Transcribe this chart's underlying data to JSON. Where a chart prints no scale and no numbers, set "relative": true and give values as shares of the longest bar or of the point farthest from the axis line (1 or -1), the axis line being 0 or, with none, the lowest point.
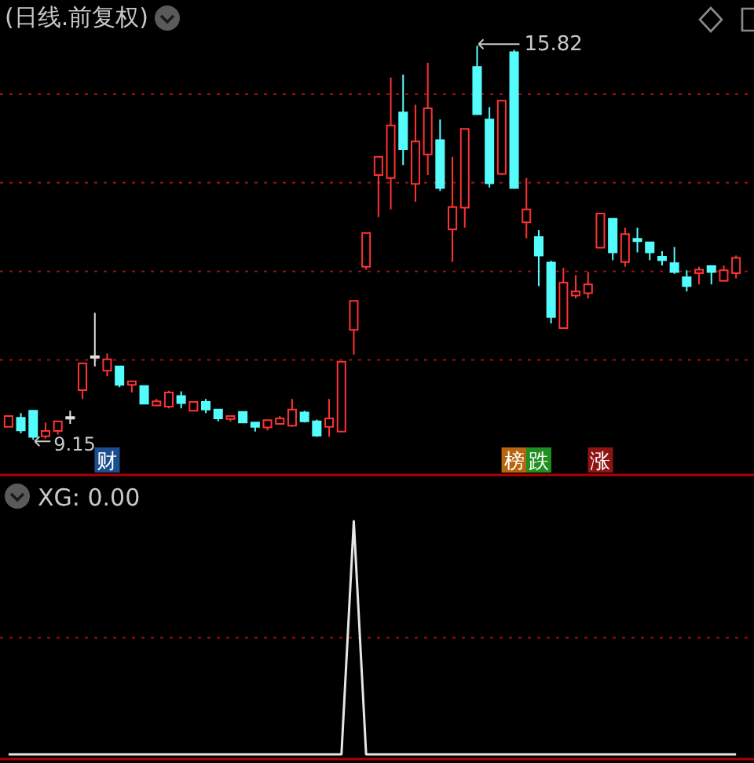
{
  "chart_data": [
    {
      "type": "candlestick",
      "title": "(日线.前复权)",
      "categories": [
        null,
        null,
        null,
        null,
        null,
        null,
        null,
        null,
        null,
        null,
        null,
        null,
        null,
        null,
        null,
        null,
        null,
        null,
        null,
        null,
        null,
        null,
        null,
        null,
        null,
        null,
        null,
        null,
        null,
        null,
        null,
        null,
        null,
        null,
        null,
        null,
        null,
        null,
        null,
        null,
        null,
        null,
        null,
        null,
        null,
        null,
        null,
        null,
        null,
        null,
        null,
        null,
        null,
        null,
        null,
        null,
        null,
        null,
        null,
        null
      ],
      "ohlc": [
        [
          9.37,
          9.55,
          9.37,
          9.55
        ],
        [
          9.52,
          9.6,
          9.26,
          9.31
        ],
        [
          9.64,
          9.64,
          9.15,
          9.2
        ],
        [
          9.21,
          9.44,
          9.17,
          9.3
        ],
        [
          9.3,
          9.46,
          9.24,
          9.46
        ],
        [
          9.52,
          9.64,
          9.42,
          9.52
        ],
        [
          9.99,
          10.44,
          9.84,
          10.44
        ],
        [
          10.55,
          11.3,
          10.39,
          10.55
        ],
        [
          10.32,
          10.61,
          10.23,
          10.51
        ],
        [
          10.39,
          10.39,
          10.04,
          10.08
        ],
        [
          10.08,
          10.14,
          9.95,
          10.14
        ],
        [
          10.06,
          10.06,
          9.76,
          9.76
        ],
        [
          9.73,
          9.84,
          9.73,
          9.8
        ],
        [
          9.71,
          9.98,
          9.68,
          9.95
        ],
        [
          9.89,
          9.97,
          9.68,
          9.77
        ],
        [
          9.64,
          9.79,
          9.64,
          9.79
        ],
        [
          9.79,
          9.84,
          9.6,
          9.66
        ],
        [
          9.66,
          9.66,
          9.46,
          9.51
        ],
        [
          9.5,
          9.55,
          9.46,
          9.55
        ],
        [
          9.62,
          9.62,
          9.44,
          9.44
        ],
        [
          9.44,
          9.44,
          9.29,
          9.37
        ],
        [
          9.36,
          9.48,
          9.31,
          9.48
        ],
        [
          9.42,
          9.55,
          9.42,
          9.51
        ],
        [
          9.39,
          9.84,
          9.37,
          9.66
        ],
        [
          9.61,
          9.64,
          9.44,
          9.46
        ],
        [
          9.46,
          9.49,
          9.2,
          9.22
        ],
        [
          9.37,
          9.84,
          9.2,
          9.51
        ],
        [
          9.29,
          10.47,
          9.29,
          10.47
        ],
        [
          11.01,
          11.5,
          10.59,
          11.5
        ],
        [
          12.08,
          12.65,
          12.03,
          12.65
        ],
        [
          13.63,
          13.94,
          12.92,
          13.94
        ],
        [
          13.58,
          15.28,
          13.05,
          14.47
        ],
        [
          14.69,
          15.33,
          13.8,
          14.07
        ],
        [
          13.48,
          14.82,
          13.18,
          14.2
        ],
        [
          13.98,
          15.53,
          13.63,
          14.76
        ],
        [
          14.22,
          14.57,
          13.36,
          13.41
        ],
        [
          12.71,
          13.94,
          12.16,
          13.09
        ],
        [
          13.08,
          14.41,
          12.74,
          14.41
        ],
        [
          15.46,
          15.82,
          14.65,
          14.66
        ],
        [
          14.57,
          14.78,
          13.42,
          13.49
        ],
        [
          13.65,
          14.89,
          13.63,
          14.89
        ],
        [
          15.71,
          15.75,
          13.41,
          13.41
        ],
        [
          12.83,
          13.58,
          12.56,
          13.05
        ],
        [
          12.58,
          12.7,
          11.75,
          12.27
        ],
        [
          12.15,
          12.18,
          11.12,
          11.23
        ],
        [
          11.04,
          12.06,
          11.04,
          11.81
        ],
        [
          11.59,
          11.94,
          11.54,
          11.66
        ],
        [
          11.63,
          11.99,
          11.54,
          11.78
        ],
        [
          12.4,
          12.98,
          12.4,
          12.98
        ],
        [
          12.89,
          12.89,
          12.19,
          12.32
        ],
        [
          12.16,
          12.74,
          12.08,
          12.63
        ],
        [
          12.55,
          12.74,
          12.32,
          12.51
        ],
        [
          12.49,
          12.49,
          12.19,
          12.32
        ],
        [
          12.25,
          12.34,
          12.1,
          12.19
        ],
        [
          12.14,
          12.41,
          11.96,
          11.99
        ],
        [
          11.9,
          12.02,
          11.66,
          11.75
        ],
        [
          11.97,
          12.08,
          11.78,
          12.03
        ],
        [
          12.09,
          12.09,
          11.78,
          11.99
        ],
        [
          11.84,
          12.1,
          11.84,
          12.02
        ],
        [
          11.97,
          12.27,
          11.88,
          12.23
        ]
      ],
      "colors": [
        "#ff3232",
        "#54fcfc",
        "#54fcfc",
        "#ff3232",
        "#ff3232",
        "#e0e0e0",
        "#ff3232",
        "#e0e0e0",
        "#ff3232",
        "#54fcfc",
        "#ff3232",
        "#54fcfc",
        "#ff3232",
        "#ff3232",
        "#54fcfc",
        "#ff3232",
        "#54fcfc",
        "#54fcfc",
        "#ff3232",
        "#54fcfc",
        "#54fcfc",
        "#ff3232",
        "#ff3232",
        "#ff3232",
        "#54fcfc",
        "#54fcfc",
        "#ff3232",
        "#ff3232",
        "#ff3232",
        "#ff3232",
        "#ff3232",
        "#ff3232",
        "#54fcfc",
        "#ff3232",
        "#ff3232",
        "#54fcfc",
        "#ff3232",
        "#ff3232",
        "#54fcfc",
        "#54fcfc",
        "#ff3232",
        "#54fcfc",
        "#ff3232",
        "#54fcfc",
        "#54fcfc",
        "#ff3232",
        "#ff3232",
        "#ff3232",
        "#ff3232",
        "#54fcfc",
        "#ff3232",
        "#54fcfc",
        "#54fcfc",
        "#54fcfc",
        "#54fcfc",
        "#54fcfc",
        "#ff3232",
        "#54fcfc",
        "#ff3232",
        "#ff3232"
      ],
      "yticks": [
        {
          "value": 10.5,
          "label": null
        },
        {
          "value": 12,
          "label": null
        },
        {
          "value": 13.5,
          "label": null
        },
        {
          "value": 15,
          "label": null
        }
      ],
      "grid": "y",
      "annotations": [
        "15.82",
        "9.15",
        "财",
        "榜",
        "跌",
        "涨"
      ]
    },
    {
      "type": "line",
      "title": "XG: 0.00",
      "categories": [
        null,
        null,
        null,
        null,
        null,
        null,
        null,
        null,
        null,
        null,
        null,
        null,
        null,
        null,
        null,
        null,
        null,
        null,
        null,
        null,
        null,
        null,
        null,
        null,
        null,
        null,
        null,
        null,
        null,
        null,
        null,
        null,
        null,
        null,
        null,
        null,
        null,
        null,
        null,
        null,
        null,
        null,
        null,
        null,
        null,
        null,
        null,
        null,
        null,
        null,
        null,
        null,
        null,
        null,
        null,
        null,
        null,
        null,
        null,
        null
      ],
      "series": [
        {
          "color": "#e6e6e6",
          "values": [
            0,
            0,
            0,
            0,
            0,
            0,
            0,
            0,
            0,
            0,
            0,
            0,
            0,
            0,
            0,
            0,
            0,
            0,
            0,
            0,
            0,
            0,
            0,
            0,
            0,
            0,
            0,
            0,
            1,
            0,
            0,
            0,
            0,
            0,
            0,
            0,
            0,
            0,
            0,
            0,
            0,
            0,
            0,
            0,
            0,
            0,
            0,
            0,
            0,
            0,
            0,
            0,
            0,
            0,
            0,
            0,
            0,
            0,
            0,
            0
          ]
        }
      ],
      "relative": true,
      "ref_lines": [
        {
          "axis": "y",
          "value": 0.5,
          "color": "#a01010",
          "line_style": "dotted"
        }
      ]
    }
  ]
}
